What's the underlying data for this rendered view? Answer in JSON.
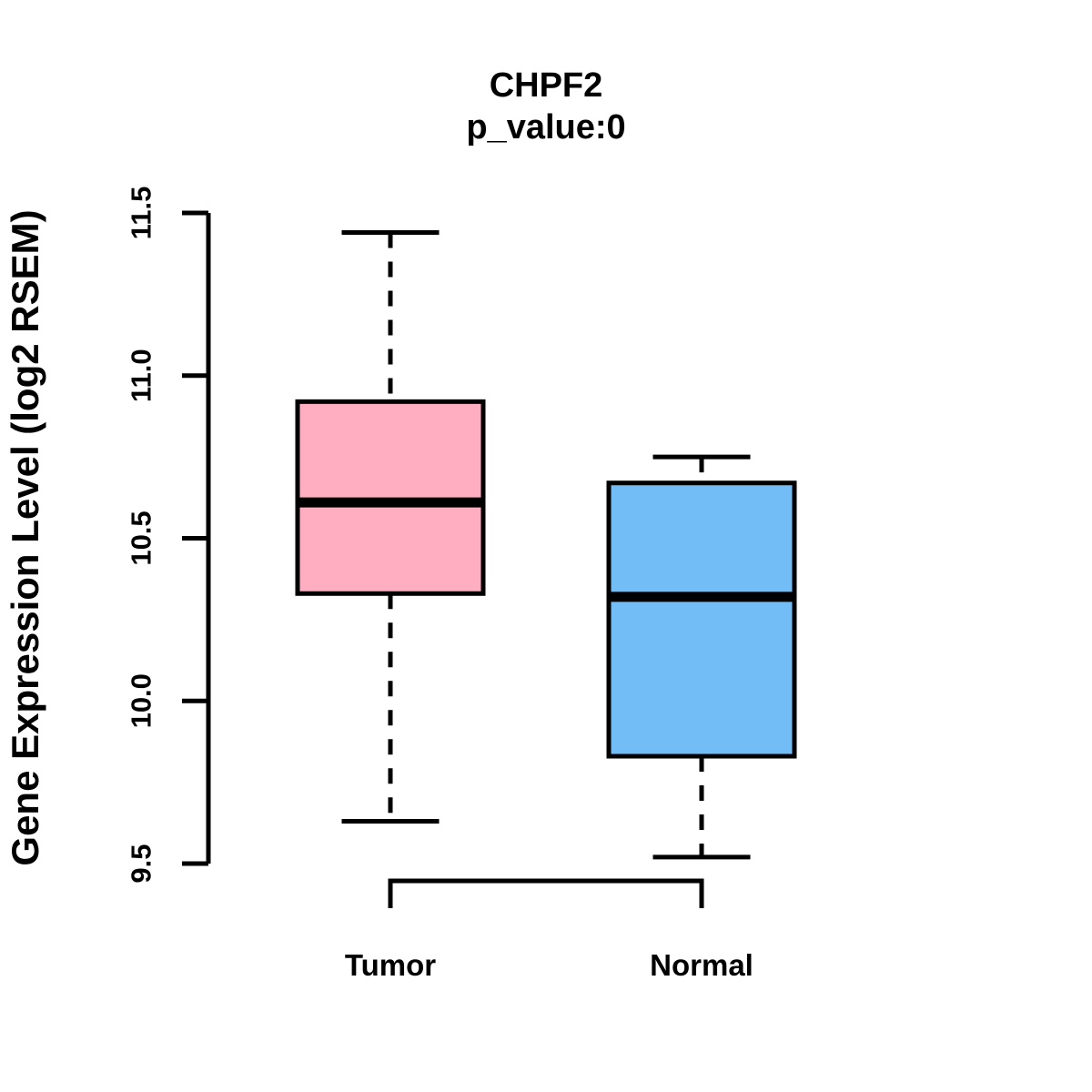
{
  "title": {
    "main": "CHPF2",
    "sub": "p_value:0"
  },
  "chart_data": {
    "type": "boxplot",
    "title": "CHPF2",
    "subtitle": "p_value:0",
    "xlabel": "",
    "ylabel": "Gene Expression Level (log2 RSEM)",
    "ylim": [
      9.5,
      11.5
    ],
    "yticks": [
      "9.5",
      "10.0",
      "10.5",
      "11.0",
      "11.5"
    ],
    "grid": false,
    "legend": false,
    "categories": [
      "Tumor",
      "Normal"
    ],
    "series": [
      {
        "name": "Tumor",
        "fill_color": "#FFAEC1",
        "lower_whisker": 9.63,
        "q1": 10.33,
        "median": 10.61,
        "q3": 10.92,
        "upper_whisker": 11.44
      },
      {
        "name": "Normal",
        "fill_color": "#73BDF6",
        "lower_whisker": 9.52,
        "q1": 9.83,
        "median": 10.32,
        "q3": 10.67,
        "upper_whisker": 10.75
      }
    ],
    "comparison_bracket": {
      "from": "Tumor",
      "to": "Normal"
    }
  },
  "colors": {
    "tumor_box": "#FFAEC1",
    "normal_box": "#73BDF6",
    "line": "#000000",
    "background": "#FFFFFF"
  }
}
